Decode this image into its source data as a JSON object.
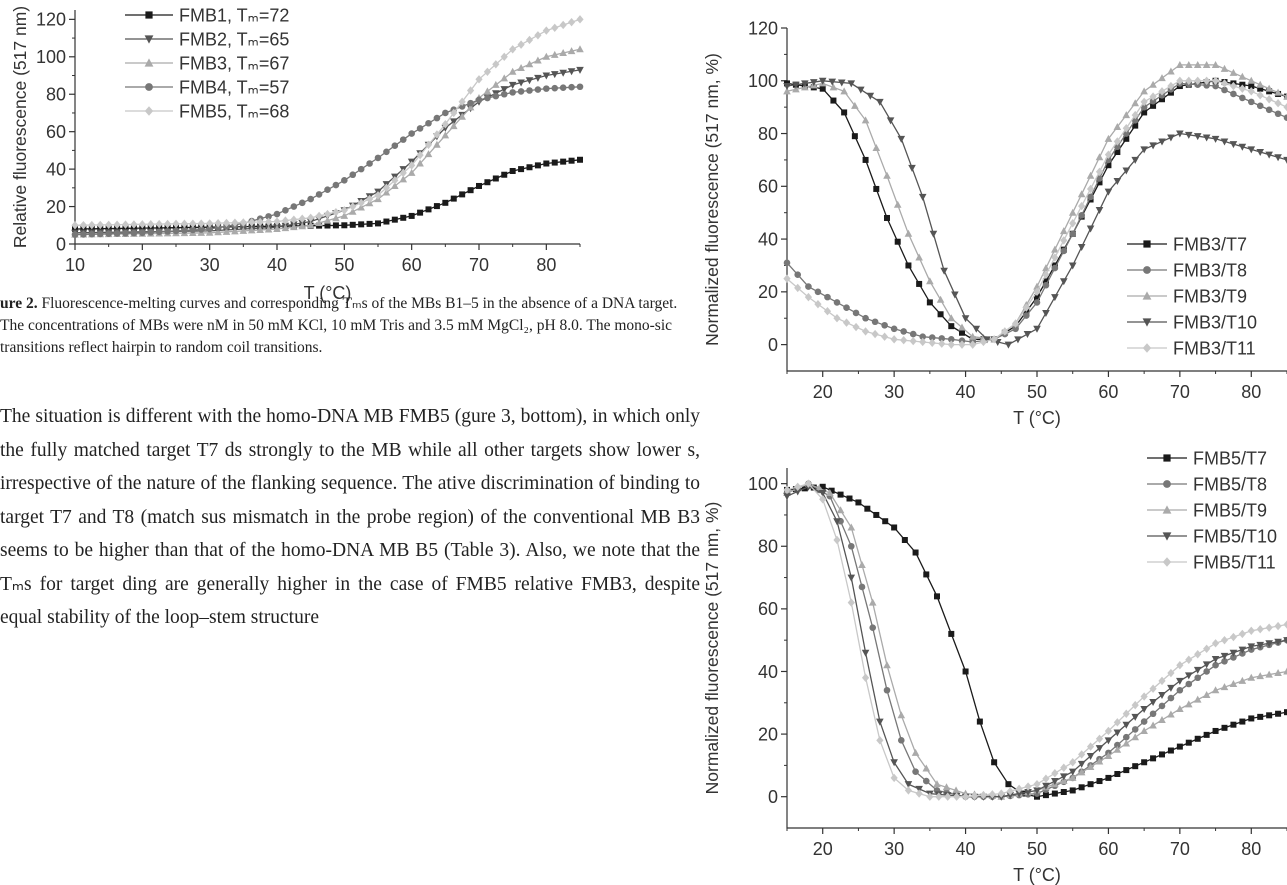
{
  "figure2": {
    "caption": {
      "label": "ure 2.",
      "text": "Fluorescence-melting curves and corresponding Tₘs of the MBs B1–5 in the absence of a DNA target. The concentrations of MBs were nM in 50 mM KCl, 10 mM Tris and 3.5 mM MgCl₂, pH 8.0. The mono-sic transitions reflect hairpin to random coil transitions."
    }
  },
  "body_text": "The situation is different with the homo-DNA MB FMB5 (gure 3, bottom), in which only the fully matched target T7 ds strongly to the MB while all other targets show lower s, irrespective of the nature of the flanking sequence. The ative discrimination of binding to target T7 and T8 (match sus mismatch in the probe region) of the conventional MB B3 seems to be higher than that of the homo-DNA MB B5 (Table 3). Also, we note that the Tₘs for target ding are generally higher in the case of FMB5 relative FMB3, despite equal stability of the loop–stem structure",
  "chart_data": [
    {
      "id": "fig2",
      "type": "line",
      "xlabel": "T (°C)",
      "ylabel": "Relative fluorescence (517 nm)",
      "xlim": [
        10,
        85
      ],
      "ylim": [
        0,
        125
      ],
      "xticks": [
        10,
        20,
        30,
        40,
        50,
        60,
        70,
        80
      ],
      "yticks": [
        0,
        20,
        40,
        60,
        80,
        100,
        120
      ],
      "legend_position": "top-left",
      "series": [
        {
          "name": "FMB1, Tₘ=72",
          "marker": "square",
          "color": "#1a1a1a",
          "x": [
            10,
            20,
            30,
            40,
            50,
            55,
            60,
            65,
            70,
            75,
            80,
            85
          ],
          "y": [
            8,
            8.5,
            9,
            9.5,
            10,
            11,
            15,
            22,
            31,
            39,
            43,
            45
          ]
        },
        {
          "name": "FMB2, Tₘ=65",
          "marker": "triangle-down",
          "color": "#555555",
          "x": [
            10,
            20,
            30,
            40,
            45,
            50,
            55,
            60,
            65,
            70,
            75,
            80,
            85
          ],
          "y": [
            6,
            6.5,
            7,
            9,
            12,
            18,
            28,
            44,
            62,
            76,
            85,
            90,
            93
          ]
        },
        {
          "name": "FMB3, Tₘ=67",
          "marker": "triangle-up",
          "color": "#aaaaaa",
          "x": [
            10,
            20,
            30,
            40,
            45,
            50,
            55,
            60,
            65,
            70,
            75,
            80,
            85
          ],
          "y": [
            5,
            5.5,
            6,
            8,
            10,
            15,
            24,
            38,
            58,
            78,
            92,
            100,
            104
          ]
        },
        {
          "name": "FMB4, Tₘ=57",
          "marker": "circle",
          "color": "#777777",
          "x": [
            10,
            20,
            30,
            35,
            40,
            45,
            50,
            55,
            60,
            65,
            70,
            75,
            80,
            85
          ],
          "y": [
            5,
            6,
            8,
            11,
            16,
            24,
            34,
            46,
            59,
            70,
            77,
            81,
            83,
            84
          ]
        },
        {
          "name": "FMB5, Tₘ=68",
          "marker": "diamond",
          "color": "#c8c8c8",
          "x": [
            10,
            20,
            30,
            40,
            45,
            50,
            55,
            60,
            65,
            70,
            75,
            80,
            85
          ],
          "y": [
            10,
            10.5,
            11,
            12,
            14,
            18,
            26,
            42,
            64,
            88,
            104,
            114,
            120
          ]
        }
      ]
    },
    {
      "id": "fig3-top",
      "type": "line",
      "xlabel": "T (°C)",
      "ylabel": "Normalized fluorescence (517 nm, %)",
      "xlim": [
        15,
        85
      ],
      "ylim": [
        -10,
        120
      ],
      "xticks": [
        20,
        30,
        40,
        50,
        60,
        70,
        80
      ],
      "yticks": [
        0,
        20,
        40,
        60,
        80,
        100,
        120
      ],
      "legend_position": "bottom-right",
      "series": [
        {
          "name": "FMB3/T7",
          "marker": "square",
          "color": "#1a1a1a",
          "x": [
            15,
            20,
            23,
            26,
            29,
            32,
            35,
            38,
            41,
            44,
            47,
            50,
            55,
            60,
            65,
            70,
            75,
            80,
            85
          ],
          "y": [
            99,
            97,
            88,
            70,
            48,
            30,
            16,
            7,
            2,
            2,
            7,
            18,
            42,
            68,
            88,
            98,
            100,
            98,
            94
          ]
        },
        {
          "name": "FMB3/T8",
          "marker": "circle",
          "color": "#777777",
          "x": [
            15,
            18,
            22,
            26,
            30,
            34,
            38,
            41,
            44,
            47,
            50,
            55,
            60,
            65,
            70,
            75,
            80,
            85
          ],
          "y": [
            31,
            22,
            16,
            10,
            6,
            3,
            2,
            1,
            2,
            6,
            16,
            42,
            70,
            90,
            99,
            98,
            92,
            86
          ]
        },
        {
          "name": "FMB3/T9",
          "marker": "triangle-up",
          "color": "#aaaaaa",
          "x": [
            15,
            20,
            23,
            26,
            29,
            32,
            35,
            38,
            41,
            44,
            47,
            50,
            55,
            60,
            65,
            70,
            75,
            80,
            85
          ],
          "y": [
            96,
            99,
            96,
            85,
            64,
            42,
            24,
            10,
            3,
            2,
            8,
            22,
            50,
            78,
            96,
            106,
            106,
            100,
            94
          ]
        },
        {
          "name": "FMB3/T10",
          "marker": "triangle-down",
          "color": "#555555",
          "x": [
            15,
            20,
            24,
            28,
            31,
            34,
            37,
            40,
            43,
            46,
            50,
            55,
            60,
            65,
            70,
            75,
            80,
            85
          ],
          "y": [
            98,
            100,
            99,
            92,
            78,
            56,
            28,
            10,
            2,
            0,
            6,
            30,
            58,
            74,
            80,
            78,
            74,
            70
          ]
        },
        {
          "name": "FMB3/T11",
          "marker": "diamond",
          "color": "#c8c8c8",
          "x": [
            15,
            18,
            22,
            26,
            30,
            34,
            38,
            41,
            44,
            47,
            50,
            55,
            60,
            65,
            70,
            75,
            80,
            85
          ],
          "y": [
            25,
            18,
            10,
            5,
            2,
            1,
            0,
            0,
            2,
            8,
            20,
            46,
            72,
            92,
            100,
            100,
            96,
            90
          ]
        }
      ]
    },
    {
      "id": "fig3-bottom",
      "type": "line",
      "xlabel": "T (°C)",
      "ylabel": "Normalized fluorescence (517 nm, %)",
      "xlim": [
        15,
        85
      ],
      "ylim": [
        -10,
        105
      ],
      "xticks": [
        20,
        30,
        40,
        50,
        60,
        70,
        80
      ],
      "yticks": [
        0,
        20,
        40,
        60,
        80,
        100
      ],
      "legend_position": "top-right",
      "series": [
        {
          "name": "FMB5/T7",
          "marker": "square",
          "color": "#1a1a1a",
          "x": [
            15,
            20,
            25,
            30,
            33,
            36,
            38,
            40,
            42,
            44,
            46,
            48,
            50,
            55,
            60,
            65,
            70,
            75,
            80,
            85
          ],
          "y": [
            98,
            99,
            94,
            86,
            78,
            64,
            52,
            40,
            24,
            11,
            4,
            1,
            0,
            2,
            6,
            11,
            16,
            21,
            25,
            27
          ]
        },
        {
          "name": "FMB5/T8",
          "marker": "circle",
          "color": "#777777",
          "x": [
            15,
            18,
            21,
            24,
            27,
            29,
            31,
            33,
            36,
            40,
            45,
            50,
            55,
            60,
            65,
            70,
            75,
            80,
            85
          ],
          "y": [
            97,
            100,
            96,
            80,
            54,
            34,
            18,
            8,
            2,
            0,
            0,
            1,
            6,
            14,
            24,
            34,
            42,
            47,
            50
          ]
        },
        {
          "name": "FMB5/T9",
          "marker": "triangle-up",
          "color": "#aaaaaa",
          "x": [
            15,
            18,
            21,
            24,
            27,
            29,
            31,
            33,
            36,
            40,
            45,
            50,
            55,
            60,
            65,
            70,
            75,
            80,
            85
          ],
          "y": [
            97,
            100,
            97,
            86,
            62,
            42,
            26,
            14,
            4,
            1,
            0,
            2,
            6,
            13,
            21,
            28,
            34,
            38,
            40
          ]
        },
        {
          "name": "FMB5/T10",
          "marker": "triangle-down",
          "color": "#555555",
          "x": [
            15,
            18,
            20,
            22,
            24,
            26,
            28,
            30,
            32,
            35,
            40,
            45,
            50,
            55,
            60,
            65,
            70,
            75,
            80,
            85
          ],
          "y": [
            96,
            99,
            97,
            88,
            70,
            46,
            24,
            11,
            4,
            1,
            0,
            0,
            2,
            8,
            18,
            28,
            37,
            44,
            48,
            50
          ]
        },
        {
          "name": "FMB5/T11",
          "marker": "diamond",
          "color": "#c8c8c8",
          "x": [
            15,
            18,
            20,
            22,
            24,
            26,
            28,
            30,
            32,
            35,
            40,
            45,
            50,
            55,
            60,
            65,
            70,
            75,
            80,
            85
          ],
          "y": [
            98,
            100,
            95,
            82,
            62,
            38,
            18,
            6,
            2,
            0,
            0,
            1,
            4,
            11,
            21,
            32,
            42,
            49,
            53,
            55
          ]
        }
      ]
    }
  ]
}
